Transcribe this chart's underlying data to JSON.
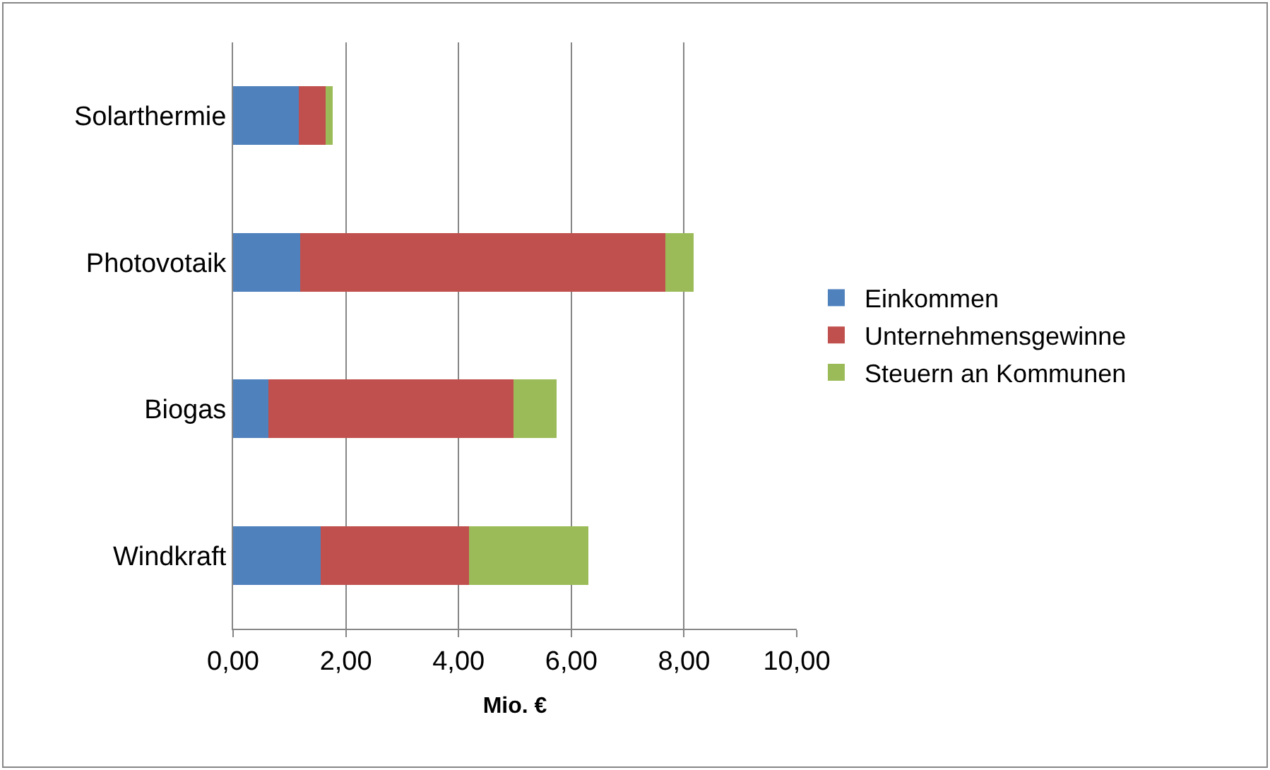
{
  "chart_data": {
    "type": "bar",
    "orientation": "horizontal",
    "stacked": true,
    "categories": [
      "Solarthermie",
      "Photovotaik",
      "Biogas",
      "Windkraft"
    ],
    "series": [
      {
        "name": "Einkommen",
        "color": "#4f81bd",
        "values": [
          1.16,
          1.19,
          0.63,
          1.56
        ]
      },
      {
        "name": "Unternehmensgewinne",
        "color": "#c0504d",
        "values": [
          0.48,
          6.48,
          4.34,
          2.62
        ]
      },
      {
        "name": "Steuern an Kommunen",
        "color": "#9bbb59",
        "values": [
          0.13,
          0.5,
          0.77,
          2.12
        ]
      }
    ],
    "xlabel": "Mio. €",
    "xlim": [
      0,
      10
    ],
    "xticks": [
      {
        "value": 0,
        "label": "0,00"
      },
      {
        "value": 2,
        "label": "2,00"
      },
      {
        "value": 4,
        "label": "4,00"
      },
      {
        "value": 6,
        "label": "6,00"
      },
      {
        "value": 8,
        "label": "8,00"
      },
      {
        "value": 10,
        "label": "10,00"
      }
    ],
    "grid": "x",
    "legend": "right"
  }
}
